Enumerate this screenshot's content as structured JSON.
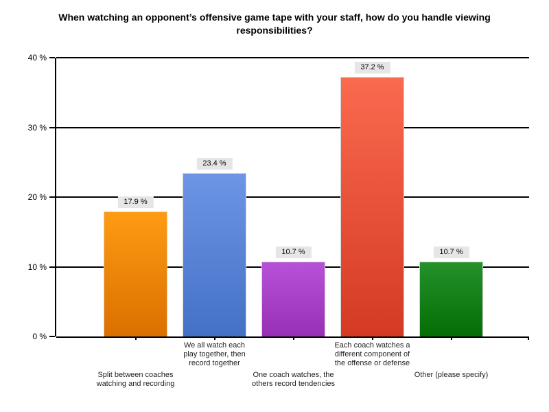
{
  "title": "When watching an opponent’s offensive game tape with your staff, how do you handle viewing responsibilities?",
  "chart_data": {
    "type": "bar",
    "title": "When watching an opponent’s offensive game tape with your staff, how do you handle viewing responsibilities?",
    "xlabel": "",
    "ylabel": "",
    "ylim": [
      0,
      40
    ],
    "grid": true,
    "legend": false,
    "y_ticks": [
      {
        "value": 0,
        "label": "0 %"
      },
      {
        "value": 10,
        "label": "10 %"
      },
      {
        "value": 20,
        "label": "20 %"
      },
      {
        "value": 30,
        "label": "30 %"
      },
      {
        "value": 40,
        "label": "40 %"
      }
    ],
    "categories": [
      "Split between coaches watching and recording",
      "We all watch each play together, then record together",
      "One coach watches, the others record tendencies",
      "Each coach watches a different component of the offense or defense",
      "Other (please specify)"
    ],
    "category_label_lines": [
      [
        "Split between coaches",
        "watching and recording"
      ],
      [
        "We all watch each",
        "play together, then",
        "record together"
      ],
      [
        "One coach watches, the",
        "others record tendencies"
      ],
      [
        "Each coach watches a",
        "different component of",
        "the offense or defense"
      ],
      [
        "Other (please specify)"
      ]
    ],
    "values": [
      17.9,
      23.4,
      10.7,
      37.2,
      10.7
    ],
    "value_labels": [
      "17.9 %",
      "23.4 %",
      "10.7 %",
      "37.2 %",
      "10.7 %"
    ],
    "bar_colors": [
      {
        "name": "orange",
        "top": "#fe9b13",
        "bottom": "#da7000"
      },
      {
        "name": "blue",
        "top": "#6c95e6",
        "bottom": "#4471c5"
      },
      {
        "name": "purple",
        "top": "#b751d7",
        "bottom": "#9730b5"
      },
      {
        "name": "red",
        "top": "#fa6a4f",
        "bottom": "#d43a24"
      },
      {
        "name": "green",
        "top": "#24912a",
        "bottom": "#056d05"
      }
    ],
    "colors": {
      "axis": "#000000",
      "value_label_bg": "#e6e6e6",
      "text": "#1f1f1f",
      "background": "#ffffff"
    }
  }
}
